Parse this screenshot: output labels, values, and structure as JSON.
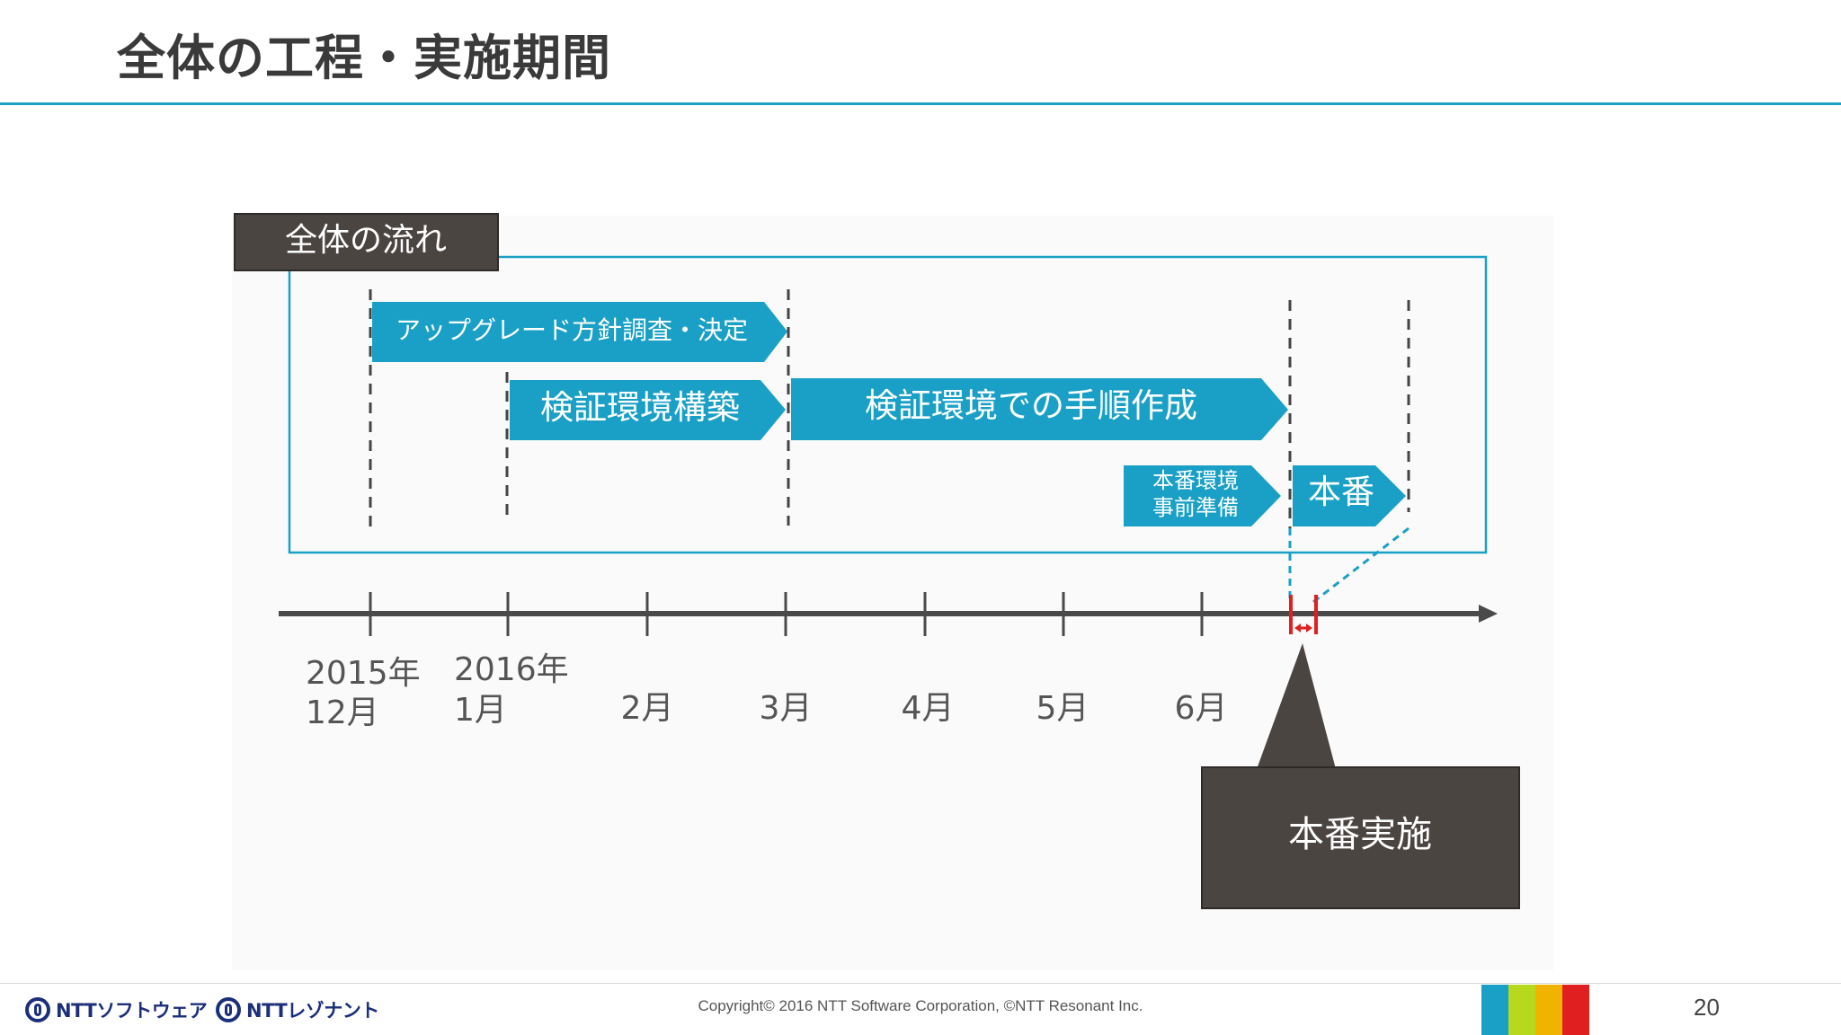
{
  "page": {
    "title": "全体の工程・実施期間",
    "number": "20"
  },
  "diagram": {
    "overview_label": "全体の流れ",
    "phases": [
      {
        "label": "アップグレード方針調査・決定",
        "lines": [
          "アップグレード方針調査・決定"
        ]
      },
      {
        "label": "検証環境構築",
        "lines": [
          "検証環境構築"
        ]
      },
      {
        "label": "検証環境での手順作成",
        "lines": [
          "検証環境での手順作成"
        ]
      },
      {
        "label": "本番環境事前準備",
        "lines": [
          "本番環境",
          "事前準備"
        ]
      },
      {
        "label": "本番",
        "lines": [
          "本番"
        ]
      }
    ],
    "timeline_ticks": [
      {
        "lines": [
          "2015年",
          "12月"
        ]
      },
      {
        "lines": [
          "2016年",
          "1月"
        ]
      },
      {
        "lines": [
          "2月"
        ]
      },
      {
        "lines": [
          "3月"
        ]
      },
      {
        "lines": [
          "4月"
        ]
      },
      {
        "lines": [
          "5月"
        ]
      },
      {
        "lines": [
          "6月"
        ]
      }
    ],
    "callout_label": "本番実施",
    "colors": {
      "accent": "#1aa0c6",
      "dark_box": "#4b4542",
      "axis": "#4a4a4a",
      "marker": "#e02020"
    }
  },
  "footer": {
    "logo_left": "NTTソフトウェア",
    "logo_right": "NTTレゾナント",
    "copyright": "Copyright© 2016 NTT Software Corporation, ©NTT Resonant Inc.",
    "brand_colors": [
      "#1aa0c6",
      "#b6d91e",
      "#f0b400",
      "#e02020"
    ]
  }
}
